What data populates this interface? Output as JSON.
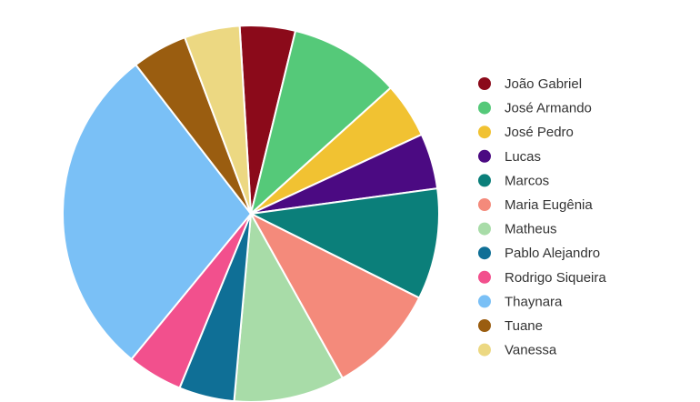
{
  "chart_data": {
    "type": "pie",
    "title": "",
    "legend_position": "right",
    "categories": [
      "João Gabriel",
      "José Armando",
      "José Pedro",
      "Lucas",
      "Marcos",
      "Maria Eugênia",
      "Matheus",
      "Pablo Alejandro",
      "Rodrigo Siqueira",
      "Thaynara",
      "Tuane",
      "Vanessa"
    ],
    "values": [
      1,
      2,
      1,
      1,
      2,
      2,
      2,
      1,
      1,
      6,
      1,
      1
    ],
    "colors": [
      "#8b0a1a",
      "#55c979",
      "#f1c232",
      "#4b0a82",
      "#0b7f7a",
      "#f48a7b",
      "#a8dca8",
      "#0f6f96",
      "#f2508d",
      "#7ac0f6",
      "#9a5d10",
      "#ecd882"
    ]
  }
}
